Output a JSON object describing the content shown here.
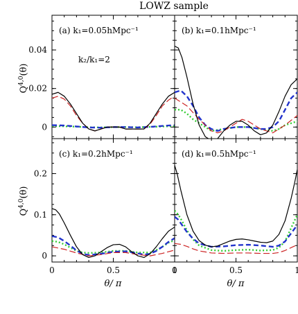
{
  "figure": {
    "title": "LOWZ sample",
    "xlabel": "θ/ π",
    "ylabel": "Q^{4,0}(θ)"
  },
  "chart_data": [
    {
      "type": "line",
      "panel": "a",
      "label": "(a) k₁=0.05hMpc⁻¹",
      "annotation": "k₂/k₁=2",
      "xlim": [
        0,
        1
      ],
      "ylim": [
        -0.006,
        0.058
      ],
      "yticks": [
        0,
        0.02,
        0.04
      ],
      "yticklabels": [
        "0",
        "0.02",
        "0.04"
      ],
      "xticks": [
        0,
        0.5,
        1
      ],
      "xticklabels": [],
      "series": [
        {
          "color": "#000000",
          "style": "solid",
          "width": 1.2,
          "x": [
            0,
            0.05,
            0.1,
            0.15,
            0.2,
            0.25,
            0.3,
            0.35,
            0.4,
            0.45,
            0.5,
            0.55,
            0.6,
            0.65,
            0.7,
            0.75,
            0.8,
            0.85,
            0.9,
            0.95,
            1.0
          ],
          "y": [
            0.017,
            0.018,
            0.016,
            0.012,
            0.007,
            0.002,
            -0.001,
            -0.002,
            -0.001,
            0.0,
            0.0,
            0.0,
            -0.001,
            -0.001,
            -0.001,
            -0.001,
            0.002,
            0.007,
            0.012,
            0.016,
            0.018
          ]
        },
        {
          "color": "#cc2222",
          "style": "longdash",
          "width": 1.2,
          "x": [
            0,
            0.05,
            0.1,
            0.15,
            0.2,
            0.25,
            0.3,
            0.35,
            0.4,
            0.45,
            0.5,
            0.55,
            0.6,
            0.65,
            0.7,
            0.75,
            0.8,
            0.85,
            0.9,
            0.95,
            1.0
          ],
          "y": [
            0.015,
            0.016,
            0.0145,
            0.011,
            0.006,
            0.002,
            -0.001,
            -0.002,
            -0.001,
            0.0,
            0.0,
            0.0,
            -0.001,
            -0.001,
            -0.001,
            -0.001,
            0.0015,
            0.006,
            0.011,
            0.014,
            0.016
          ]
        },
        {
          "color": "#2233cc",
          "style": "dash",
          "width": 2.4,
          "x": [
            0,
            0.1,
            0.2,
            0.3,
            0.4,
            0.5,
            0.6,
            0.7,
            0.8,
            0.9,
            1.0
          ],
          "y": [
            0.001,
            0.0008,
            0.0003,
            -0.0002,
            -0.0003,
            0.0,
            0.0,
            -0.0002,
            0.0001,
            0.0006,
            0.001
          ]
        },
        {
          "color": "#33cc33",
          "style": "dot",
          "width": 2.4,
          "x": [
            0,
            0.1,
            0.2,
            0.3,
            0.4,
            0.5,
            0.6,
            0.7,
            0.8,
            0.9,
            1.0
          ],
          "y": [
            0.0005,
            0.0004,
            0.0002,
            -0.0001,
            -0.0002,
            0.0,
            0.0,
            -0.0001,
            0.0001,
            0.0003,
            0.0005
          ]
        }
      ]
    },
    {
      "type": "line",
      "panel": "b",
      "label": "(b) k₁=0.1hMpc⁻¹",
      "xlim": [
        0,
        1
      ],
      "ylim": [
        -0.006,
        0.058
      ],
      "yticks": [
        0,
        0.02,
        0.04
      ],
      "yticklabels": [],
      "xticks": [
        0,
        0.5,
        1
      ],
      "xticklabels": [],
      "series": [
        {
          "color": "#000000",
          "style": "solid",
          "width": 1.2,
          "x": [
            0,
            0.03,
            0.06,
            0.1,
            0.15,
            0.2,
            0.25,
            0.3,
            0.35,
            0.4,
            0.45,
            0.5,
            0.55,
            0.6,
            0.65,
            0.7,
            0.75,
            0.8,
            0.85,
            0.9,
            0.95,
            1.0
          ],
          "y": [
            0.042,
            0.041,
            0.036,
            0.026,
            0.012,
            0.001,
            -0.005,
            -0.007,
            -0.006,
            -0.002,
            0.001,
            0.003,
            0.003,
            0.001,
            -0.002,
            -0.004,
            -0.003,
            0.001,
            0.008,
            0.016,
            0.022,
            0.025
          ]
        },
        {
          "color": "#cc2222",
          "style": "longdash",
          "width": 1.2,
          "x": [
            0,
            0.1,
            0.2,
            0.3,
            0.35,
            0.4,
            0.5,
            0.55,
            0.6,
            0.7,
            0.8,
            0.9,
            1.0
          ],
          "y": [
            0.015,
            0.011,
            0.004,
            -0.002,
            -0.003,
            -0.002,
            0.002,
            0.004,
            0.003,
            -0.001,
            -0.003,
            0.001,
            0.006
          ]
        },
        {
          "color": "#2233cc",
          "style": "dash",
          "width": 2.4,
          "x": [
            0,
            0.05,
            0.1,
            0.15,
            0.2,
            0.25,
            0.3,
            0.35,
            0.4,
            0.5,
            0.6,
            0.7,
            0.75,
            0.8,
            0.85,
            0.9,
            0.95,
            1.0
          ],
          "y": [
            0.018,
            0.019,
            0.016,
            0.011,
            0.005,
            0.001,
            -0.001,
            -0.002,
            -0.001,
            0.0,
            0.0,
            -0.001,
            -0.001,
            0.0,
            0.003,
            0.009,
            0.015,
            0.018
          ]
        },
        {
          "color": "#33cc33",
          "style": "dot",
          "width": 2.4,
          "x": [
            0,
            0.05,
            0.1,
            0.15,
            0.2,
            0.3,
            0.4,
            0.5,
            0.6,
            0.7,
            0.8,
            0.85,
            0.9,
            0.95,
            1.0
          ],
          "y": [
            0.009,
            0.009,
            0.007,
            0.004,
            0.002,
            -0.002,
            -0.001,
            0.0,
            0.0,
            -0.001,
            -0.002,
            -0.001,
            0.001,
            0.002,
            0.003
          ]
        }
      ]
    },
    {
      "type": "line",
      "panel": "c",
      "label": "(c) k₁=0.2hMpc⁻¹",
      "xlim": [
        0,
        1
      ],
      "ylim": [
        -0.015,
        0.285
      ],
      "yticks": [
        0,
        0.1,
        0.2
      ],
      "yticklabels": [
        "0",
        "0.1",
        "0.2"
      ],
      "xticks": [
        0,
        0.5,
        1
      ],
      "xticklabels": [
        "0",
        "0.5",
        "1"
      ],
      "series": [
        {
          "color": "#000000",
          "style": "solid",
          "width": 1.2,
          "x": [
            0,
            0.03,
            0.06,
            0.1,
            0.15,
            0.2,
            0.25,
            0.3,
            0.35,
            0.4,
            0.45,
            0.5,
            0.55,
            0.6,
            0.65,
            0.7,
            0.75,
            0.8,
            0.85,
            0.9,
            0.95,
            1.0
          ],
          "y": [
            0.115,
            0.112,
            0.102,
            0.08,
            0.05,
            0.022,
            0.003,
            -0.004,
            0.0,
            0.01,
            0.02,
            0.027,
            0.028,
            0.022,
            0.01,
            0.0,
            -0.004,
            0.005,
            0.022,
            0.042,
            0.06,
            0.07
          ]
        },
        {
          "color": "#cc2222",
          "style": "longdash",
          "width": 1.2,
          "x": [
            0,
            0.1,
            0.2,
            0.3,
            0.4,
            0.5,
            0.6,
            0.7,
            0.8,
            0.9,
            1.0
          ],
          "y": [
            0.022,
            0.016,
            0.007,
            0.0,
            0.003,
            0.008,
            0.008,
            0.003,
            0.0,
            0.006,
            0.014
          ]
        },
        {
          "color": "#2233cc",
          "style": "dash",
          "width": 2.4,
          "x": [
            0,
            0.05,
            0.1,
            0.15,
            0.2,
            0.25,
            0.3,
            0.4,
            0.5,
            0.6,
            0.7,
            0.75,
            0.8,
            0.85,
            0.9,
            0.95,
            1.0
          ],
          "y": [
            0.048,
            0.045,
            0.036,
            0.025,
            0.013,
            0.005,
            0.002,
            0.005,
            0.01,
            0.011,
            0.006,
            0.003,
            0.005,
            0.012,
            0.022,
            0.034,
            0.043
          ]
        },
        {
          "color": "#33cc33",
          "style": "dot",
          "width": 2.4,
          "x": [
            0,
            0.05,
            0.1,
            0.15,
            0.2,
            0.25,
            0.3,
            0.4,
            0.5,
            0.6,
            0.7,
            0.8,
            0.85,
            0.9,
            0.95,
            1.0
          ],
          "y": [
            0.036,
            0.034,
            0.028,
            0.02,
            0.012,
            0.008,
            0.007,
            0.008,
            0.012,
            0.012,
            0.008,
            0.008,
            0.014,
            0.022,
            0.032,
            0.038
          ]
        }
      ]
    },
    {
      "type": "line",
      "panel": "d",
      "label": "(d) k₁=0.5hMpc⁻¹",
      "xlim": [
        0,
        1
      ],
      "ylim": [
        -0.015,
        0.285
      ],
      "yticks": [
        0,
        0.1,
        0.2
      ],
      "yticklabels": [],
      "xticks": [
        0,
        0.5,
        1
      ],
      "xticklabels": [
        "0",
        "0.5",
        "1"
      ],
      "series": [
        {
          "color": "#000000",
          "style": "solid",
          "width": 1.2,
          "x": [
            0,
            0.02,
            0.05,
            0.1,
            0.15,
            0.2,
            0.25,
            0.3,
            0.35,
            0.4,
            0.45,
            0.5,
            0.55,
            0.6,
            0.65,
            0.7,
            0.75,
            0.8,
            0.85,
            0.9,
            0.95,
            0.98,
            1.0
          ],
          "y": [
            0.22,
            0.2,
            0.16,
            0.1,
            0.06,
            0.037,
            0.026,
            0.022,
            0.024,
            0.03,
            0.036,
            0.04,
            0.041,
            0.039,
            0.036,
            0.033,
            0.032,
            0.036,
            0.052,
            0.085,
            0.14,
            0.18,
            0.21
          ]
        },
        {
          "color": "#cc2222",
          "style": "longdash",
          "width": 1.2,
          "x": [
            0,
            0.05,
            0.1,
            0.15,
            0.2,
            0.3,
            0.4,
            0.5,
            0.6,
            0.7,
            0.8,
            0.85,
            0.9,
            0.95,
            1.0
          ],
          "y": [
            0.03,
            0.028,
            0.023,
            0.017,
            0.012,
            0.007,
            0.006,
            0.007,
            0.007,
            0.006,
            0.006,
            0.008,
            0.013,
            0.02,
            0.027
          ]
        },
        {
          "color": "#2233cc",
          "style": "dash",
          "width": 2.4,
          "x": [
            0,
            0.03,
            0.06,
            0.1,
            0.15,
            0.2,
            0.3,
            0.4,
            0.5,
            0.6,
            0.7,
            0.8,
            0.85,
            0.9,
            0.95,
            1.0
          ],
          "y": [
            0.095,
            0.088,
            0.075,
            0.058,
            0.042,
            0.03,
            0.022,
            0.023,
            0.026,
            0.027,
            0.025,
            0.022,
            0.025,
            0.035,
            0.055,
            0.075
          ]
        },
        {
          "color": "#33cc33",
          "style": "dot",
          "width": 2.4,
          "x": [
            0,
            0.03,
            0.06,
            0.1,
            0.15,
            0.2,
            0.3,
            0.4,
            0.5,
            0.6,
            0.7,
            0.8,
            0.85,
            0.9,
            0.95,
            1.0
          ],
          "y": [
            0.11,
            0.1,
            0.085,
            0.062,
            0.04,
            0.025,
            0.014,
            0.012,
            0.014,
            0.015,
            0.013,
            0.014,
            0.02,
            0.035,
            0.068,
            0.1
          ]
        }
      ]
    }
  ]
}
